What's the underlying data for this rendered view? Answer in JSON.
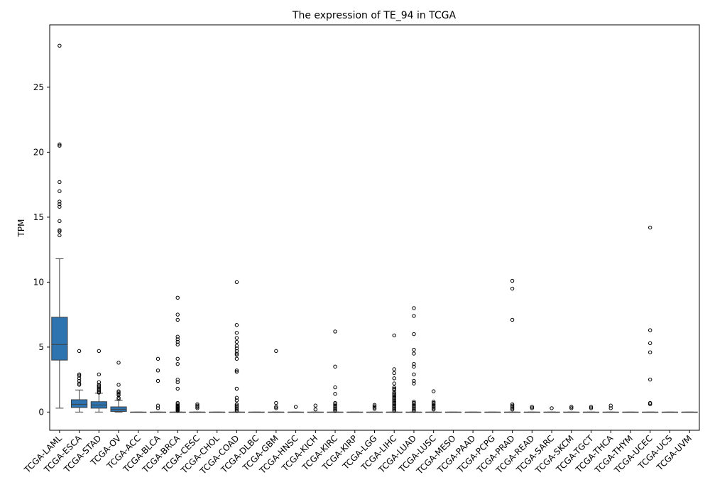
{
  "chart_data": {
    "type": "box",
    "title": "The expression of TE_94 in TCGA",
    "xlabel": "",
    "ylabel": "TPM",
    "ylim": [
      -1.4,
      29.8
    ],
    "yticks": [
      0,
      5,
      10,
      15,
      20,
      25
    ],
    "grid": false,
    "box_color": "#2e74b1",
    "categories": [
      "TCGA-LAML",
      "TCGA-ESCA",
      "TCGA-STAD",
      "TCGA-OV",
      "TCGA-ACC",
      "TCGA-BLCA",
      "TCGA-BRCA",
      "TCGA-CESC",
      "TCGA-CHOL",
      "TCGA-COAD",
      "TCGA-DLBC",
      "TCGA-GBM",
      "TCGA-HNSC",
      "TCGA-KICH",
      "TCGA-KIRC",
      "TCGA-KIRP",
      "TCGA-LGG",
      "TCGA-LIHC",
      "TCGA-LUAD",
      "TCGA-LUSC",
      "TCGA-MESO",
      "TCGA-PAAD",
      "TCGA-PCPG",
      "TCGA-PRAD",
      "TCGA-READ",
      "TCGA-SARC",
      "TCGA-SKCM",
      "TCGA-TGCT",
      "TCGA-THCA",
      "TCGA-THYM",
      "TCGA-UCEC",
      "TCGA-UCS",
      "TCGA-UVM"
    ],
    "boxes": [
      {
        "min": 0.3,
        "q1": 4.0,
        "median": 5.2,
        "q3": 7.3,
        "max": 11.8,
        "outliers": [
          28.2,
          20.6,
          20.5,
          17.7,
          17.0,
          16.2,
          16.0,
          15.8,
          14.7,
          14.0,
          13.9,
          13.6
        ]
      },
      {
        "min": 0.0,
        "q1": 0.35,
        "median": 0.6,
        "q3": 0.95,
        "max": 1.7,
        "outliers": [
          4.7,
          2.9,
          2.8,
          2.6,
          2.4,
          2.2,
          2.1
        ]
      },
      {
        "min": 0.0,
        "q1": 0.3,
        "median": 0.55,
        "q3": 0.8,
        "max": 1.45,
        "outliers": [
          4.7,
          2.9,
          2.3,
          2.1,
          2.0,
          1.9,
          1.8,
          1.7,
          1.6,
          1.5
        ]
      },
      {
        "min": 0.0,
        "q1": 0.05,
        "median": 0.2,
        "q3": 0.4,
        "max": 0.9,
        "outliers": [
          3.8,
          2.1,
          1.6,
          1.5,
          1.4,
          1.3,
          1.1,
          1.0
        ]
      },
      {
        "min": 0,
        "q1": 0,
        "median": 0,
        "q3": 0,
        "max": 0,
        "outliers": []
      },
      {
        "min": 0,
        "q1": 0,
        "median": 0,
        "q3": 0,
        "max": 0,
        "outliers": [
          4.1,
          3.2,
          2.4,
          0.5,
          0.3
        ]
      },
      {
        "min": 0,
        "q1": 0,
        "median": 0,
        "q3": 0,
        "max": 0,
        "outliers": [
          8.8,
          7.5,
          7.1,
          5.8,
          5.6,
          5.4,
          5.2,
          4.1,
          3.7,
          2.5,
          2.3,
          1.8,
          0.7,
          0.6,
          0.5,
          0.45,
          0.4,
          0.35,
          0.3,
          0.25,
          0.2,
          0.15,
          0.1
        ]
      },
      {
        "min": 0,
        "q1": 0,
        "median": 0,
        "q3": 0,
        "max": 0,
        "outliers": [
          0.6,
          0.5,
          0.4,
          0.3
        ]
      },
      {
        "min": 0,
        "q1": 0,
        "median": 0,
        "q3": 0,
        "max": 0,
        "outliers": []
      },
      {
        "min": 0,
        "q1": 0,
        "median": 0,
        "q3": 0,
        "max": 0,
        "outliers": [
          10.0,
          6.7,
          6.1,
          5.7,
          5.4,
          5.1,
          4.9,
          4.7,
          4.5,
          4.4,
          4.1,
          3.2,
          3.1,
          1.8,
          1.1,
          0.9,
          0.6,
          0.5,
          0.4,
          0.3,
          0.2,
          0.1
        ]
      },
      {
        "min": 0,
        "q1": 0,
        "median": 0,
        "q3": 0,
        "max": 0,
        "outliers": []
      },
      {
        "min": 0,
        "q1": 0,
        "median": 0,
        "q3": 0,
        "max": 0,
        "outliers": [
          4.7,
          0.7,
          0.4,
          0.3
        ]
      },
      {
        "min": 0,
        "q1": 0,
        "median": 0,
        "q3": 0,
        "max": 0,
        "outliers": [
          0.4
        ]
      },
      {
        "min": 0,
        "q1": 0,
        "median": 0,
        "q3": 0,
        "max": 0,
        "outliers": [
          0.5,
          0.2
        ]
      },
      {
        "min": 0,
        "q1": 0,
        "median": 0,
        "q3": 0,
        "max": 0,
        "outliers": [
          6.2,
          3.5,
          1.9,
          1.4,
          0.7,
          0.6,
          0.5,
          0.4,
          0.3,
          0.2,
          0.1
        ]
      },
      {
        "min": 0,
        "q1": 0,
        "median": 0,
        "q3": 0,
        "max": 0,
        "outliers": []
      },
      {
        "min": 0,
        "q1": 0,
        "median": 0,
        "q3": 0,
        "max": 0,
        "outliers": [
          0.55,
          0.45,
          0.35,
          0.25
        ]
      },
      {
        "min": 0,
        "q1": 0,
        "median": 0,
        "q3": 0,
        "max": 0,
        "outliers": [
          5.9,
          3.3,
          3.0,
          2.6,
          2.2,
          1.9,
          1.8,
          1.7,
          1.5,
          1.4,
          1.3,
          1.2,
          1.1,
          1.0,
          0.9,
          0.8,
          0.7,
          0.6,
          0.5,
          0.4,
          0.3,
          0.2,
          0.1
        ]
      },
      {
        "min": 0,
        "q1": 0,
        "median": 0,
        "q3": 0,
        "max": 0,
        "outliers": [
          8.0,
          7.4,
          6.0,
          4.8,
          4.5,
          3.7,
          3.5,
          2.9,
          2.4,
          2.2,
          0.8,
          0.7,
          0.6,
          0.5,
          0.4,
          0.3,
          0.2,
          0.1
        ]
      },
      {
        "min": 0,
        "q1": 0,
        "median": 0,
        "q3": 0,
        "max": 0,
        "outliers": [
          1.6,
          0.8,
          0.7,
          0.6,
          0.5,
          0.4,
          0.3,
          0.2
        ]
      },
      {
        "min": 0,
        "q1": 0,
        "median": 0,
        "q3": 0,
        "max": 0,
        "outliers": []
      },
      {
        "min": 0,
        "q1": 0,
        "median": 0,
        "q3": 0,
        "max": 0,
        "outliers": []
      },
      {
        "min": 0,
        "q1": 0,
        "median": 0,
        "q3": 0,
        "max": 0,
        "outliers": []
      },
      {
        "min": 0,
        "q1": 0,
        "median": 0,
        "q3": 0,
        "max": 0,
        "outliers": [
          10.1,
          9.5,
          7.1,
          0.6,
          0.5,
          0.4,
          0.3,
          0.2
        ]
      },
      {
        "min": 0,
        "q1": 0,
        "median": 0,
        "q3": 0,
        "max": 0,
        "outliers": [
          0.4,
          0.3
        ]
      },
      {
        "min": 0,
        "q1": 0,
        "median": 0,
        "q3": 0,
        "max": 0,
        "outliers": [
          0.3
        ]
      },
      {
        "min": 0,
        "q1": 0,
        "median": 0,
        "q3": 0,
        "max": 0,
        "outliers": [
          0.4,
          0.3
        ]
      },
      {
        "min": 0,
        "q1": 0,
        "median": 0,
        "q3": 0,
        "max": 0,
        "outliers": [
          0.4,
          0.3
        ]
      },
      {
        "min": 0,
        "q1": 0,
        "median": 0,
        "q3": 0,
        "max": 0,
        "outliers": [
          0.5,
          0.3
        ]
      },
      {
        "min": 0,
        "q1": 0,
        "median": 0,
        "q3": 0,
        "max": 0,
        "outliers": []
      },
      {
        "min": 0,
        "q1": 0,
        "median": 0,
        "q3": 0,
        "max": 0,
        "outliers": [
          14.2,
          6.3,
          5.3,
          4.6,
          2.5,
          0.7,
          0.6
        ]
      },
      {
        "min": 0,
        "q1": 0,
        "median": 0,
        "q3": 0,
        "max": 0,
        "outliers": []
      },
      {
        "min": 0,
        "q1": 0,
        "median": 0,
        "q3": 0,
        "max": 0,
        "outliers": []
      }
    ]
  }
}
